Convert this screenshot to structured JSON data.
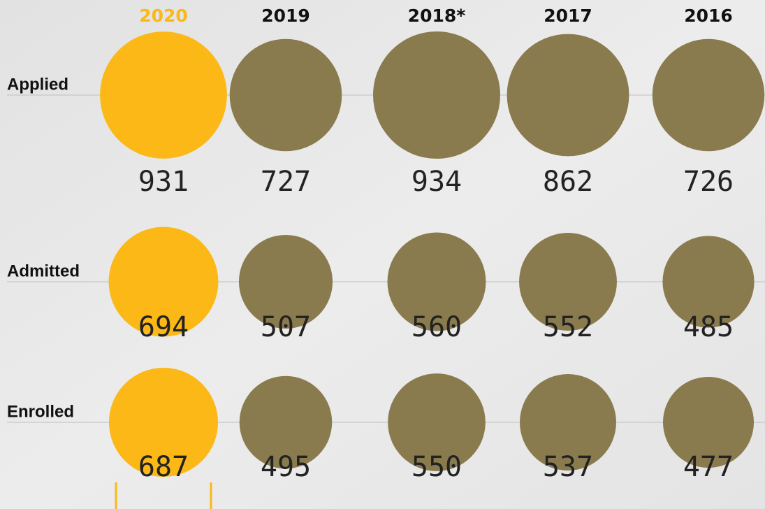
{
  "chart_data": {
    "type": "bubble",
    "categories": [
      "2020",
      "2019",
      "2018*",
      "2017",
      "2016"
    ],
    "highlight": "2020",
    "colors": [
      "#fbb817",
      "#8a7b4e",
      "#8a7b4e",
      "#8a7b4e",
      "#8a7b4e"
    ],
    "series": [
      {
        "name": "Applied",
        "values": [
          931,
          727,
          934,
          862,
          726
        ]
      },
      {
        "name": "Admitted",
        "values": [
          694,
          507,
          560,
          552,
          485
        ]
      },
      {
        "name": "Enrolled",
        "values": [
          687,
          495,
          550,
          537,
          477
        ]
      }
    ]
  }
}
